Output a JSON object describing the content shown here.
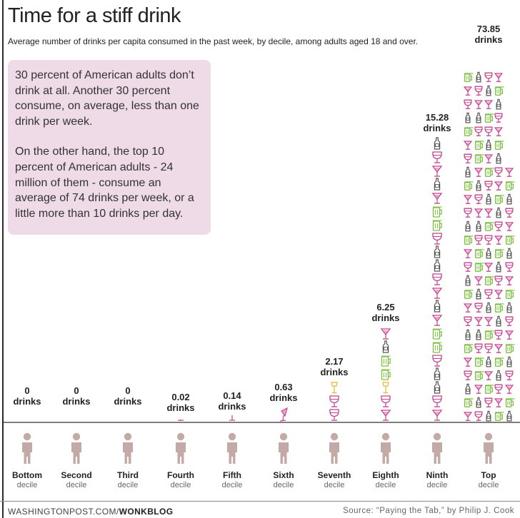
{
  "chart_data": {
    "type": "bar",
    "title": "Time for a stiff drink",
    "subtitle": "Average number of drinks per capita consumed in the past week, by decile, among adults aged 18 and over.",
    "categories": [
      {
        "name": "Bottom",
        "sub": "decile"
      },
      {
        "name": "Second",
        "sub": "decile"
      },
      {
        "name": "Third",
        "sub": "decile"
      },
      {
        "name": "Fourth",
        "sub": "decile"
      },
      {
        "name": "Fifth",
        "sub": "decile"
      },
      {
        "name": "Sixth",
        "sub": "decile"
      },
      {
        "name": "Seventh",
        "sub": "decile"
      },
      {
        "name": "Eighth",
        "sub": "decile"
      },
      {
        "name": "Ninth",
        "sub": "decile"
      },
      {
        "name": "Top",
        "sub": "decile"
      }
    ],
    "values": [
      0,
      0,
      0,
      0.02,
      0.14,
      0.63,
      2.17,
      6.25,
      15.28,
      73.85
    ],
    "value_labels": [
      [
        "0",
        "drinks"
      ],
      [
        "0",
        "drinks"
      ],
      [
        "0",
        "drinks"
      ],
      [
        "0.02",
        "drinks"
      ],
      [
        "0.14",
        "drinks"
      ],
      [
        "0.63",
        "drinks"
      ],
      [
        "2.17",
        "drinks"
      ],
      [
        "6.25",
        "drinks"
      ],
      [
        "15.28",
        "drinks"
      ],
      [
        "73.85",
        "drinks"
      ]
    ],
    "icon_types": [
      "martini glass",
      "wine glass",
      "beer mug",
      "liquor bottle"
    ],
    "colors": {
      "martini": "#c2428f",
      "wine": "#c2428f",
      "beer": "#7bbf3e",
      "bottle": "#555555",
      "accent": "#e6b832",
      "person": "#c4aaa6"
    }
  },
  "note": {
    "paragraph1": "30 percent of American adults don’t drink at all. Another 30 percent consume, on average, less than one drink per week.",
    "paragraph2": "On the other hand, the top 10 percent of American adults - 24 million of them - consume an average of 74 drinks per week, or a little more than 10 drinks per day."
  },
  "footer": {
    "site": "WASHINGTONPOST.COM/",
    "brand": "WONKBLOG",
    "source": "Source: “Paying the Tab,” by Philip J. Cook"
  }
}
